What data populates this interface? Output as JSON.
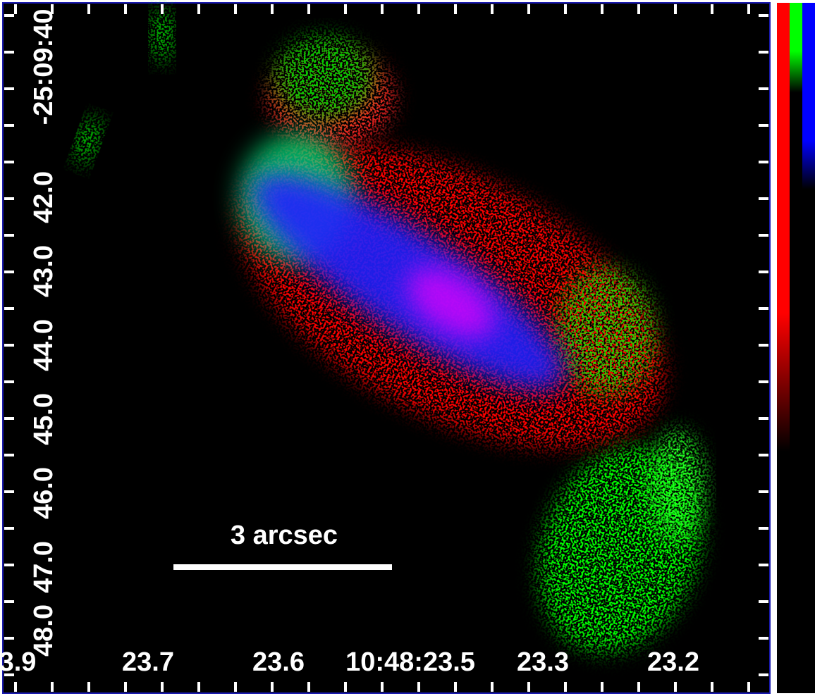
{
  "axes": {
    "y_labels": [
      "-25:09:40",
      "42.0",
      "43.0",
      "44.0",
      "45.0",
      "46.0",
      "47.0",
      "48.0"
    ],
    "x_labels": [
      "3.9",
      "23.7",
      "23.6",
      "10:48:23.5",
      "23.3",
      "23.2"
    ]
  },
  "scale_bar": {
    "label": "3 arcsec"
  }
}
